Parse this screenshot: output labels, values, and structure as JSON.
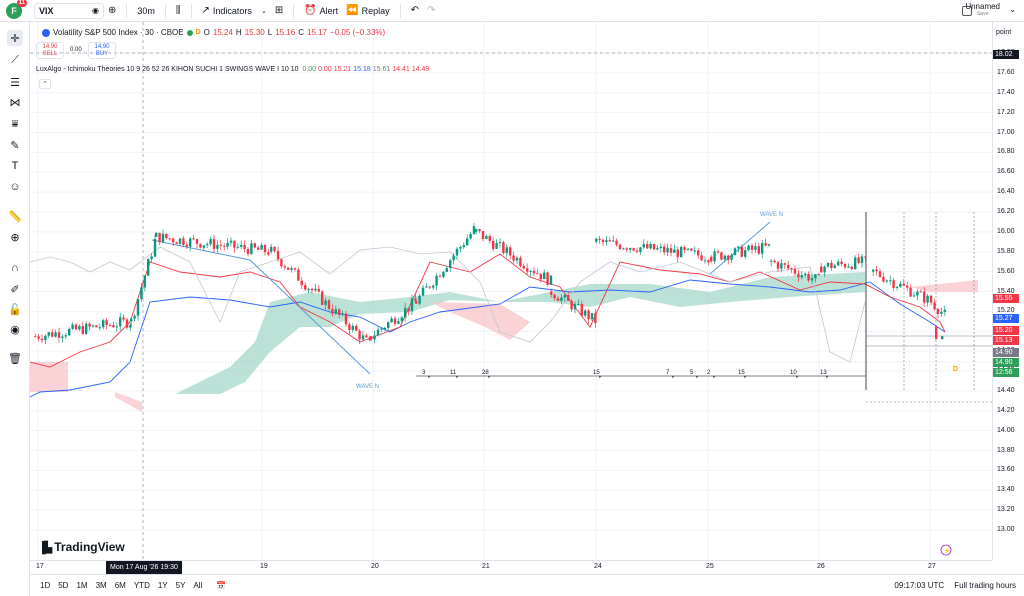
{
  "topbar": {
    "avatar_letter": "F",
    "avatar_badge": "11",
    "symbol": "VIX",
    "interval": "30m",
    "indicators_label": "Indicators",
    "alert_label": "Alert",
    "replay_label": "Replay",
    "layout_name": "Unnamed",
    "layout_status": "Save"
  },
  "legend": {
    "title": "Volatility S&P 500 Index · 30 · CBOE",
    "d_flag": "D",
    "o_label": "O",
    "o_value": "15.24",
    "h_label": "H",
    "h_value": "15.30",
    "l_label": "L",
    "l_value": "15.16",
    "c_label": "C",
    "c_value": "15.17",
    "change": "−0.05 (−0.33%)",
    "sell_price": "14.90",
    "sell_label": "SELL",
    "spread": "0.00",
    "buy_price": "14.90",
    "buy_label": "BUY"
  },
  "indicator": {
    "name": "LuxAlgo - Ichimoku Theories 10 9 26 52 26 KIHON SUCHI 1 SWINGS WAVE I 10 10",
    "values": [
      {
        "v": "0.00",
        "color": "#2e9f5b"
      },
      {
        "v": "0.00",
        "color": "#f23645"
      },
      {
        "v": "15.21",
        "color": "#f23645"
      },
      {
        "v": "15.18",
        "color": "#2962ff"
      },
      {
        "v": "15.61",
        "color": "#787b86"
      },
      {
        "v": "14.41",
        "color": "#f23645"
      },
      {
        "v": "14.49",
        "color": "#f23645"
      }
    ],
    "wave_label": "WAVE N",
    "count_labels": [
      "3",
      "11",
      "28",
      "15",
      "7",
      "5",
      "2",
      "15",
      "10",
      "13"
    ]
  },
  "price_axis": {
    "mode_label": "point",
    "ticks": [
      "17.80",
      "17.60",
      "17.40",
      "17.20",
      "17.00",
      "16.80",
      "16.60",
      "16.40",
      "16.20",
      "16.00",
      "15.80",
      "15.60",
      "15.40",
      "15.20",
      "15.00",
      "14.80",
      "14.60",
      "14.40",
      "14.20",
      "14.00",
      "13.80",
      "13.60",
      "13.40",
      "13.20",
      "13.00"
    ],
    "crosshair_price": "18.02",
    "tags": [
      {
        "v": "15.55",
        "color": "#f23645"
      },
      {
        "v": "15.27",
        "color": "#2962ff"
      },
      {
        "v": "15.20",
        "color": "#f23645"
      },
      {
        "v": "15.13",
        "color": "#f23645"
      },
      {
        "v": "14.90",
        "color": "#787b86"
      },
      {
        "v": "14.90",
        "color": "#2e9f5b"
      },
      {
        "v": "12:56",
        "color": "#2e9f5b"
      }
    ]
  },
  "time_axis": {
    "labels": [
      "17",
      "19",
      "20",
      "21",
      "24",
      "25",
      "26",
      "27"
    ],
    "crosshair_time": "Mon 17 Aug '26   19:30"
  },
  "bottombar": {
    "ranges": [
      "1D",
      "5D",
      "1M",
      "3M",
      "6M",
      "YTD",
      "1Y",
      "5Y",
      "All"
    ],
    "clock": "09:17:03 UTC",
    "session": "Full trading hours"
  },
  "branding": {
    "logo_text": "TradingView"
  },
  "colors": {
    "up": "#089981",
    "down": "#f23645",
    "kijun": "#2962ff",
    "cloud_up": "#a5d8c9",
    "cloud_down": "#f7c4c7"
  }
}
